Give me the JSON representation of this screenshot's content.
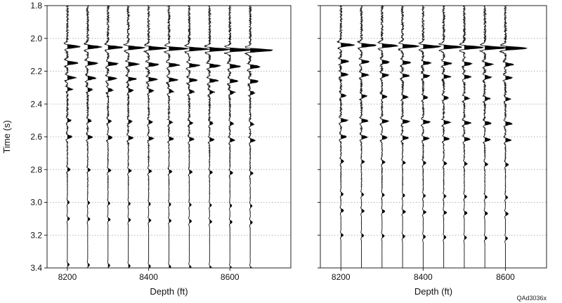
{
  "figure_id": "QAd3036x",
  "colors": {
    "trace": "#111111",
    "fill": "#000000",
    "grid": "#9a9a9a",
    "frame": "#222222"
  },
  "chart_data": [
    {
      "type": "line",
      "subtype": "seismic-wiggle-traces",
      "xlabel": "Depth (ft)",
      "ylabel": "Time (s)",
      "ylim": [
        1.8,
        3.4
      ],
      "y_inverted": true,
      "xlim": [
        8150,
        8750
      ],
      "x_ticks": [
        8200,
        8400,
        8600
      ],
      "y_ticks": [
        1.8,
        2.0,
        2.2,
        2.4,
        2.6,
        2.8,
        3.0,
        3.2,
        3.4
      ],
      "y_tick_labels": [
        "1.8",
        "2.0",
        "2.2",
        "2.4",
        "2.6",
        "2.8",
        "3.0",
        "3.2",
        "3.4"
      ],
      "grid": "horizontal dotted",
      "trace_depths": [
        8200,
        8250,
        8300,
        8350,
        8400,
        8450,
        8500,
        8550,
        8600,
        8650
      ],
      "first_arrival_time": 2.03,
      "arrival_time_slope_per_ft": 5e-05,
      "peak_fill": "positive lobes filled black",
      "events": [
        {
          "time": 2.05,
          "amplitude": 1.0
        },
        {
          "time": 2.15,
          "amplitude": 0.55
        },
        {
          "time": 2.24,
          "amplitude": 0.45
        },
        {
          "time": 2.31,
          "amplitude": 0.25
        },
        {
          "time": 2.5,
          "amplitude": 0.18
        },
        {
          "time": 2.6,
          "amplitude": 0.25
        },
        {
          "time": 2.8,
          "amplitude": 0.15
        },
        {
          "time": 3.0,
          "amplitude": 0.1
        },
        {
          "time": 3.1,
          "amplitude": 0.12
        },
        {
          "time": 3.38,
          "amplitude": 0.1
        }
      ]
    },
    {
      "type": "line",
      "subtype": "seismic-wiggle-traces",
      "xlabel": "Depth (ft)",
      "ylabel": "",
      "ylim": [
        1.8,
        3.4
      ],
      "y_inverted": true,
      "xlim": [
        8150,
        8700
      ],
      "x_ticks": [
        8200,
        8400,
        8600
      ],
      "y_ticks": [
        1.8,
        2.0,
        2.2,
        2.4,
        2.6,
        2.8,
        3.0,
        3.2,
        3.4
      ],
      "y_tick_labels": [],
      "grid": "horizontal dotted",
      "trace_depths": [
        8200,
        8250,
        8300,
        8350,
        8400,
        8450,
        8500,
        8550,
        8600
      ],
      "first_arrival_time": 2.01,
      "arrival_time_slope_per_ft": 5e-05,
      "peak_fill": "positive lobes filled black",
      "events": [
        {
          "time": 2.04,
          "amplitude": 1.0
        },
        {
          "time": 2.14,
          "amplitude": 0.4
        },
        {
          "time": 2.22,
          "amplitude": 0.35
        },
        {
          "time": 2.35,
          "amplitude": 0.25
        },
        {
          "time": 2.5,
          "amplitude": 0.35
        },
        {
          "time": 2.6,
          "amplitude": 0.3
        },
        {
          "time": 2.75,
          "amplitude": 0.15
        },
        {
          "time": 2.95,
          "amplitude": 0.12
        },
        {
          "time": 3.05,
          "amplitude": 0.15
        },
        {
          "time": 3.2,
          "amplitude": 0.12
        }
      ]
    }
  ]
}
